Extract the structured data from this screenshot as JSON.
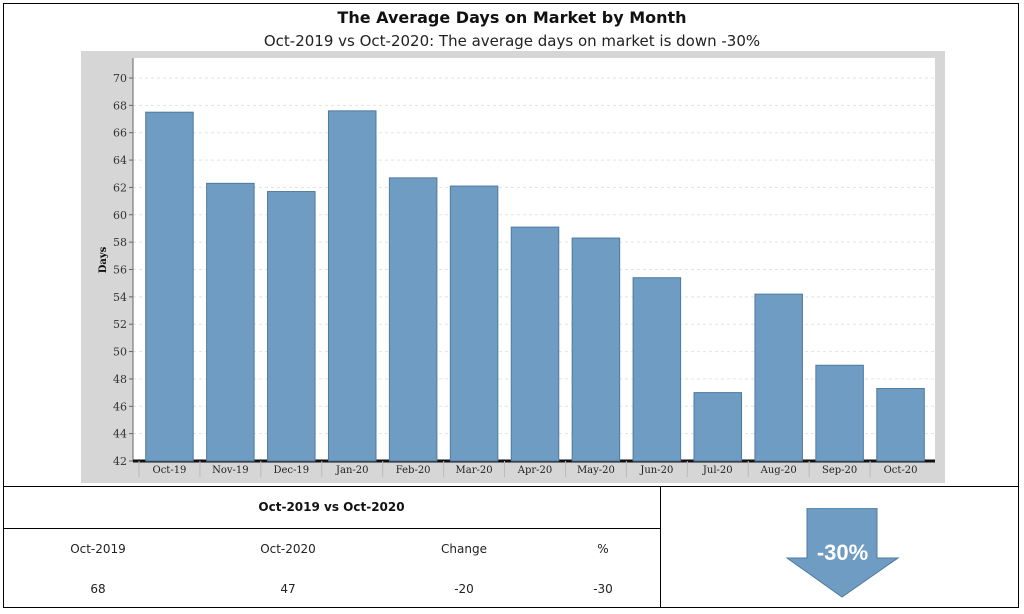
{
  "title": "The Average Days on Market by Month",
  "subtitle": "Oct-2019 vs Oct-2020: The average days on market is down -30%",
  "chart_data": {
    "type": "bar",
    "categories": [
      "Oct-19",
      "Nov-19",
      "Dec-19",
      "Jan-20",
      "Feb-20",
      "Mar-20",
      "Apr-20",
      "May-20",
      "Jun-20",
      "Jul-20",
      "Aug-20",
      "Sep-20",
      "Oct-20"
    ],
    "values": [
      67.5,
      62.3,
      61.7,
      67.6,
      62.7,
      62.1,
      59.1,
      58.3,
      55.4,
      47.0,
      54.2,
      49.0,
      47.3
    ],
    "title": "",
    "xlabel": "",
    "ylabel": "Days",
    "ylim": [
      42,
      70
    ],
    "yticks": [
      42,
      44,
      46,
      48,
      50,
      52,
      54,
      56,
      58,
      60,
      62,
      64,
      66,
      68,
      70
    ],
    "grid": true,
    "bar_color": "#6f9cc3",
    "bar_edge_color": "#4f7aa0",
    "panel_color": "#d6d6d6"
  },
  "summary": {
    "heading": "Oct-2019 vs Oct-2020",
    "columns": [
      "Oct-2019",
      "Oct-2020",
      "Change",
      "%"
    ],
    "values": [
      "68",
      "47",
      "-20",
      "-30"
    ]
  },
  "indicator": {
    "label": "-30%",
    "icon": "down-arrow-icon",
    "color": "#6f9cc3"
  }
}
